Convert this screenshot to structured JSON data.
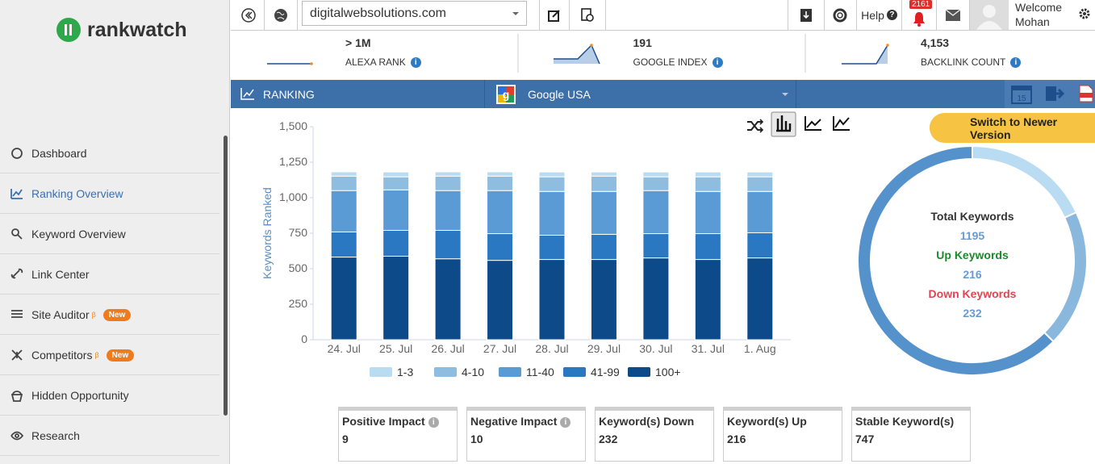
{
  "logo": "rankwatch",
  "sidebar": {
    "items": [
      {
        "label": "Dashboard"
      },
      {
        "label": "Ranking Overview"
      },
      {
        "label": "Keyword Overview"
      },
      {
        "label": "Link Center"
      },
      {
        "label": "Site Auditor",
        "sup": "β",
        "badge": "New"
      },
      {
        "label": "Competitors",
        "sup": "β",
        "badge": "New"
      },
      {
        "label": "Hidden Opportunity"
      },
      {
        "label": "Research"
      }
    ]
  },
  "topbar": {
    "domain": "digitalwebsolutions.com",
    "help": "Help",
    "notifications": "2161",
    "welcome": "Welcome",
    "user": "Mohan"
  },
  "metrics": [
    {
      "value": "> 1M",
      "label": "ALEXA RANK"
    },
    {
      "value": "191",
      "label": "GOOGLE INDEX"
    },
    {
      "value": "4,153",
      "label": "BACKLINK COUNT"
    }
  ],
  "ranking_bar": {
    "title": "RANKING",
    "engine": "Google USA"
  },
  "switch_button": "Switch to Newer Version",
  "chart_data": [
    {
      "type": "bar",
      "stacked": true,
      "ylabel": "Keywords Ranked",
      "categories": [
        "24. Jul",
        "25. Jul",
        "26. Jul",
        "27. Jul",
        "28. Jul",
        "29. Jul",
        "30. Jul",
        "31. Jul",
        "1. Aug"
      ],
      "series": [
        {
          "name": "1-3",
          "color": "#b9dcf2",
          "values": [
            30,
            34,
            30,
            30,
            34,
            29,
            34,
            34,
            34
          ]
        },
        {
          "name": "4-10",
          "color": "#8fbde0",
          "values": [
            102,
            92,
            102,
            102,
            103,
            108,
            97,
            103,
            103
          ]
        },
        {
          "name": "11-40",
          "color": "#5b9bd5",
          "values": [
            291,
            285,
            280,
            303,
            308,
            302,
            303,
            297,
            291
          ]
        },
        {
          "name": "41-99",
          "color": "#2a78c2",
          "values": [
            177,
            182,
            200,
            188,
            171,
            177,
            171,
            182,
            177
          ]
        },
        {
          "name": "100+",
          "color": "#0d4a8a",
          "values": [
            582,
            588,
            570,
            559,
            565,
            565,
            576,
            565,
            576
          ]
        }
      ],
      "ylim": [
        0,
        1500
      ],
      "yticks": [
        0,
        250,
        500,
        750,
        {
          "value": 1000,
          "label": "1,000"
        },
        {
          "value": 1250,
          "label": "1,250"
        },
        {
          "value": 1500,
          "label": "1,500"
        }
      ],
      "grid": false,
      "legend": "bottom"
    },
    {
      "type": "pie",
      "donut": true,
      "values": [
        216,
        232,
        747
      ],
      "colors": [
        "#b9dcf2",
        "#8ab8dc",
        "#5592cc"
      ],
      "center": [
        {
          "label": "Total Keywords",
          "value": 1195
        },
        {
          "label": "Up Keywords",
          "value": 216
        },
        {
          "label": "Down Keywords",
          "value": 232
        }
      ]
    }
  ],
  "cards": [
    {
      "title": "Positive Impact",
      "value": 9
    },
    {
      "title": "Negative Impact",
      "value": 10
    },
    {
      "title": "Keyword(s) Down",
      "value": 232
    },
    {
      "title": "Keyword(s) Up",
      "value": 216
    },
    {
      "title": "Stable Keyword(s)",
      "value": 747
    }
  ]
}
